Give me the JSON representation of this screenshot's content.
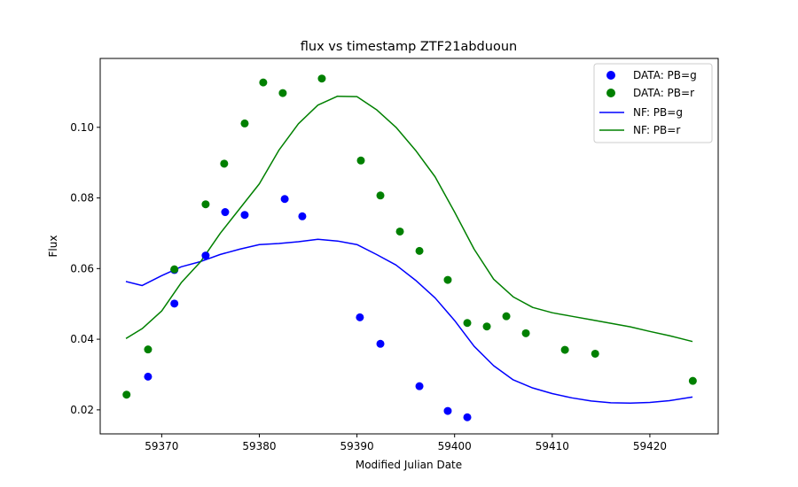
{
  "chart_data": {
    "type": "scatter",
    "title": "flux vs timestamp ZTF21abduoun",
    "xlabel": "Modified Julian Date",
    "ylabel": "Flux",
    "xlim": [
      59363.7,
      59427.0
    ],
    "ylim": [
      0.0132,
      0.1195
    ],
    "xticks": [
      59370,
      59380,
      59390,
      59400,
      59410,
      59420
    ],
    "yticks": [
      0.02,
      0.04,
      0.06,
      0.08,
      0.1
    ],
    "xtick_labels": [
      "59370",
      "59380",
      "59390",
      "59400",
      "59410",
      "59420"
    ],
    "ytick_labels": [
      "0.02",
      "0.04",
      "0.06",
      "0.08",
      "0.10"
    ],
    "grid": false,
    "legend_position": "top-right",
    "legend": [
      "DATA: PB=g",
      "DATA: PB=r",
      "NF: PB=g",
      "NF: PB=r"
    ],
    "colors": {
      "g": "#0000ff",
      "r": "#008000"
    },
    "scatter_series": [
      {
        "name": "DATA: PB=g",
        "color": "#0000ff",
        "points": [
          [
            59368.6,
            0.0294
          ],
          [
            59371.3,
            0.0501
          ],
          [
            59371.3,
            0.0596
          ],
          [
            59374.5,
            0.0637
          ],
          [
            59376.5,
            0.076
          ],
          [
            59378.5,
            0.0752
          ],
          [
            59382.6,
            0.0797
          ],
          [
            59384.4,
            0.0748
          ],
          [
            59390.3,
            0.0462
          ],
          [
            59392.4,
            0.0387
          ],
          [
            59396.4,
            0.0267
          ],
          [
            59399.3,
            0.0197
          ],
          [
            59401.3,
            0.0179
          ]
        ]
      },
      {
        "name": "DATA: PB=r",
        "color": "#008000",
        "points": [
          [
            59366.4,
            0.0243
          ],
          [
            59368.6,
            0.0371
          ],
          [
            59371.3,
            0.0598
          ],
          [
            59374.5,
            0.0782
          ],
          [
            59376.4,
            0.0897
          ],
          [
            59378.5,
            0.1011
          ],
          [
            59380.4,
            0.1127
          ],
          [
            59382.4,
            0.1097
          ],
          [
            59386.4,
            0.1138
          ],
          [
            59390.4,
            0.0906
          ],
          [
            59392.4,
            0.0807
          ],
          [
            59394.4,
            0.0705
          ],
          [
            59396.4,
            0.065
          ],
          [
            59399.3,
            0.0568
          ],
          [
            59401.3,
            0.0446
          ],
          [
            59403.3,
            0.0436
          ],
          [
            59405.3,
            0.0465
          ],
          [
            59407.3,
            0.0417
          ],
          [
            59411.3,
            0.037
          ],
          [
            59414.4,
            0.0359
          ],
          [
            59424.4,
            0.0282
          ]
        ]
      }
    ],
    "line_series": [
      {
        "name": "NF: PB=g",
        "color": "#0000ff",
        "points": [
          [
            59366.4,
            0.0563
          ],
          [
            59368.0,
            0.0552
          ],
          [
            59370.0,
            0.058
          ],
          [
            59372.0,
            0.0605
          ],
          [
            59374.0,
            0.062
          ],
          [
            59376.0,
            0.064
          ],
          [
            59378.0,
            0.0655
          ],
          [
            59380.0,
            0.0668
          ],
          [
            59382.0,
            0.0671
          ],
          [
            59384.0,
            0.0676
          ],
          [
            59386.0,
            0.0683
          ],
          [
            59388.0,
            0.0678
          ],
          [
            59390.0,
            0.0668
          ],
          [
            59392.0,
            0.064
          ],
          [
            59394.0,
            0.061
          ],
          [
            59396.0,
            0.0567
          ],
          [
            59398.0,
            0.0517
          ],
          [
            59400.0,
            0.0453
          ],
          [
            59402.0,
            0.038
          ],
          [
            59404.0,
            0.0325
          ],
          [
            59406.0,
            0.0285
          ],
          [
            59408.0,
            0.0262
          ],
          [
            59410.0,
            0.0246
          ],
          [
            59412.0,
            0.0234
          ],
          [
            59414.0,
            0.0225
          ],
          [
            59416.0,
            0.022
          ],
          [
            59418.0,
            0.0219
          ],
          [
            59420.0,
            0.0221
          ],
          [
            59422.0,
            0.0226
          ],
          [
            59424.3,
            0.0236
          ]
        ]
      },
      {
        "name": "NF: PB=r",
        "color": "#008000",
        "points": [
          [
            59366.4,
            0.0403
          ],
          [
            59368.0,
            0.043
          ],
          [
            59370.0,
            0.048
          ],
          [
            59372.0,
            0.056
          ],
          [
            59374.0,
            0.062
          ],
          [
            59376.0,
            0.07
          ],
          [
            59378.0,
            0.077
          ],
          [
            59380.0,
            0.084
          ],
          [
            59382.0,
            0.0935
          ],
          [
            59384.0,
            0.101
          ],
          [
            59386.0,
            0.1063
          ],
          [
            59388.0,
            0.1088
          ],
          [
            59390.0,
            0.1087
          ],
          [
            59392.0,
            0.105
          ],
          [
            59394.0,
            0.1
          ],
          [
            59396.0,
            0.0935
          ],
          [
            59398.0,
            0.086
          ],
          [
            59400.0,
            0.076
          ],
          [
            59402.0,
            0.0655
          ],
          [
            59404.0,
            0.057
          ],
          [
            59406.0,
            0.052
          ],
          [
            59408.0,
            0.049
          ],
          [
            59410.0,
            0.0475
          ],
          [
            59412.0,
            0.0465
          ],
          [
            59414.0,
            0.0455
          ],
          [
            59416.0,
            0.0445
          ],
          [
            59418.0,
            0.0435
          ],
          [
            59420.0,
            0.0422
          ],
          [
            59422.0,
            0.041
          ],
          [
            59424.3,
            0.0394
          ]
        ]
      }
    ]
  }
}
